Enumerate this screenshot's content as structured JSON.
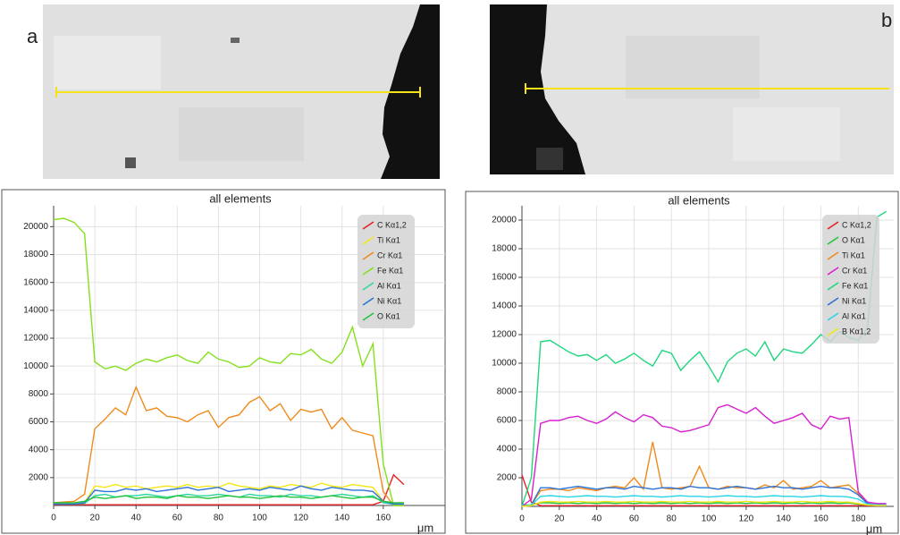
{
  "panel_labels": [
    "a",
    "b"
  ],
  "chart_data": [
    {
      "type": "line",
      "title": "all elements",
      "x_label": "μm",
      "grid": true,
      "xlim": [
        0,
        190
      ],
      "xticks": [
        0,
        20,
        40,
        60,
        80,
        100,
        120,
        140,
        160
      ],
      "ylim": [
        0,
        21500
      ],
      "yticks": [
        2000,
        4000,
        6000,
        8000,
        10000,
        12000,
        14000,
        16000,
        18000,
        20000
      ],
      "x": [
        0,
        5,
        10,
        15,
        20,
        25,
        30,
        35,
        40,
        45,
        50,
        55,
        60,
        65,
        70,
        75,
        80,
        85,
        90,
        95,
        100,
        105,
        110,
        115,
        120,
        125,
        130,
        135,
        140,
        145,
        150,
        155,
        160,
        165,
        170
      ],
      "series": [
        {
          "name": "C Kα1,2",
          "color": "#e8202a",
          "values": [
            50,
            50,
            50,
            50,
            50,
            50,
            50,
            50,
            50,
            50,
            50,
            50,
            50,
            50,
            50,
            50,
            50,
            50,
            50,
            50,
            50,
            50,
            50,
            50,
            50,
            50,
            50,
            50,
            50,
            50,
            50,
            50,
            300,
            2200,
            1500
          ]
        },
        {
          "name": "Ti Kα1",
          "color": "#f2e616",
          "values": [
            150,
            150,
            150,
            200,
            1400,
            1300,
            1500,
            1300,
            1400,
            1200,
            1300,
            1400,
            1300,
            1500,
            1300,
            1400,
            1300,
            1600,
            1400,
            1300,
            1200,
            1400,
            1300,
            1500,
            1400,
            1300,
            1600,
            1400,
            1300,
            1500,
            1400,
            1300,
            300,
            200,
            100
          ]
        },
        {
          "name": "Cr Kα1",
          "color": "#f08a1c",
          "values": [
            200,
            250,
            300,
            800,
            5500,
            6200,
            7000,
            6500,
            8500,
            6800,
            7000,
            6400,
            6300,
            6000,
            6500,
            6800,
            5600,
            6300,
            6500,
            7400,
            7800,
            6800,
            7300,
            6100,
            6900,
            6700,
            6900,
            5500,
            6300,
            5400,
            5200,
            5000,
            1000,
            0,
            0
          ]
        },
        {
          "name": "Fe Kα1",
          "color": "#84e01c",
          "values": [
            20500,
            20600,
            20300,
            19500,
            10300,
            9800,
            10000,
            9700,
            10200,
            10500,
            10300,
            10600,
            10800,
            10400,
            10200,
            11000,
            10500,
            10300,
            9900,
            10000,
            10600,
            10300,
            10200,
            10900,
            10800,
            11200,
            10500,
            10200,
            11000,
            12800,
            10000,
            11600,
            3000,
            0,
            0
          ]
        },
        {
          "name": "Al Kα1",
          "color": "#2ed6a0",
          "values": [
            100,
            100,
            100,
            150,
            700,
            800,
            600,
            700,
            700,
            800,
            700,
            600,
            700,
            800,
            700,
            700,
            800,
            700,
            600,
            800,
            700,
            700,
            600,
            800,
            700,
            700,
            600,
            700,
            800,
            700,
            600,
            700,
            200,
            100,
            100
          ]
        },
        {
          "name": "Ni Kα1",
          "color": "#2a72d8",
          "values": [
            100,
            100,
            100,
            200,
            1100,
            1000,
            1000,
            1200,
            1100,
            1200,
            1000,
            1100,
            1200,
            1300,
            1100,
            1200,
            1300,
            1000,
            1100,
            1200,
            1100,
            1300,
            1200,
            1100,
            1400,
            1200,
            1100,
            1300,
            1200,
            1100,
            1100,
            1000,
            300,
            100,
            100
          ]
        },
        {
          "name": "O Kα1",
          "color": "#22c23a",
          "values": [
            200,
            200,
            200,
            300,
            600,
            500,
            600,
            700,
            500,
            600,
            600,
            500,
            700,
            600,
            600,
            500,
            600,
            700,
            600,
            600,
            500,
            600,
            700,
            600,
            600,
            500,
            600,
            700,
            600,
            500,
            600,
            600,
            300,
            200,
            200
          ]
        }
      ]
    },
    {
      "type": "line",
      "title": "all elements",
      "x_label": "μm",
      "grid": true,
      "xlim": [
        0,
        199
      ],
      "xticks": [
        0,
        20,
        40,
        60,
        80,
        100,
        120,
        140,
        160,
        180
      ],
      "ylim": [
        0,
        21000
      ],
      "yticks": [
        2000,
        4000,
        6000,
        8000,
        10000,
        12000,
        14000,
        16000,
        18000,
        20000
      ],
      "x": [
        0,
        5,
        10,
        15,
        20,
        25,
        30,
        35,
        40,
        45,
        50,
        55,
        60,
        65,
        70,
        75,
        80,
        85,
        90,
        95,
        100,
        105,
        110,
        115,
        120,
        125,
        130,
        135,
        140,
        145,
        150,
        155,
        160,
        165,
        170,
        175,
        180,
        185,
        190,
        195
      ],
      "series": [
        {
          "name": "C Kα1,2",
          "color": "#e8202a",
          "values": [
            2200,
            300,
            50,
            50,
            50,
            50,
            50,
            50,
            50,
            50,
            50,
            50,
            50,
            50,
            50,
            50,
            50,
            50,
            50,
            50,
            50,
            50,
            50,
            50,
            50,
            50,
            50,
            50,
            50,
            50,
            50,
            50,
            50,
            50,
            50,
            50,
            50,
            50,
            50,
            50
          ]
        },
        {
          "name": "O Kα1",
          "color": "#22c23a",
          "values": [
            100,
            100,
            250,
            250,
            200,
            250,
            200,
            250,
            200,
            250,
            200,
            250,
            200,
            250,
            200,
            250,
            200,
            250,
            200,
            250,
            200,
            250,
            200,
            250,
            200,
            250,
            200,
            250,
            200,
            250,
            200,
            250,
            200,
            250,
            200,
            250,
            150,
            100,
            100,
            100
          ]
        },
        {
          "name": "Ti Kα1",
          "color": "#f08a1c",
          "values": [
            0,
            100,
            1100,
            1200,
            1200,
            1100,
            1300,
            1200,
            1100,
            1300,
            1400,
            1300,
            2000,
            1200,
            4500,
            1300,
            1200,
            1300,
            1400,
            2800,
            1300,
            1200,
            1400,
            1300,
            1300,
            1200,
            1500,
            1300,
            1800,
            1200,
            1300,
            1400,
            1800,
            1300,
            1400,
            1500,
            900,
            200,
            100,
            100
          ]
        },
        {
          "name": "Cr Kα1",
          "color": "#d81fd0",
          "values": [
            0,
            500,
            5800,
            6000,
            6000,
            6200,
            6300,
            6000,
            5800,
            6100,
            6600,
            6200,
            5900,
            6400,
            6200,
            5600,
            5500,
            5200,
            5300,
            5500,
            5700,
            6900,
            7100,
            6800,
            6500,
            6900,
            6300,
            5800,
            6000,
            6200,
            6500,
            5700,
            5400,
            6300,
            6100,
            6200,
            1000,
            300,
            200,
            200
          ]
        },
        {
          "name": "Fe Kα1",
          "color": "#1fd67f",
          "values": [
            0,
            2000,
            11500,
            11600,
            11200,
            10800,
            10500,
            10600,
            10200,
            10600,
            10000,
            10300,
            10700,
            10200,
            9800,
            10900,
            10700,
            9500,
            10200,
            10800,
            9800,
            8700,
            10100,
            10700,
            11000,
            10500,
            11500,
            10200,
            11000,
            10800,
            10700,
            11300,
            12000,
            11500,
            12200,
            11800,
            11600,
            12500,
            20200,
            20600
          ]
        },
        {
          "name": "Ni Kα1",
          "color": "#2a72d8",
          "values": [
            0,
            100,
            1300,
            1300,
            1200,
            1300,
            1400,
            1300,
            1200,
            1300,
            1300,
            1200,
            1400,
            1300,
            1200,
            1300,
            1300,
            1200,
            1400,
            1300,
            1300,
            1200,
            1300,
            1400,
            1300,
            1200,
            1300,
            1400,
            1300,
            1300,
            1200,
            1300,
            1400,
            1300,
            1300,
            1200,
            800,
            200,
            100,
            100
          ]
        },
        {
          "name": "Al Kα1",
          "color": "#2ad4e8",
          "values": [
            0,
            100,
            700,
            750,
            700,
            650,
            700,
            750,
            700,
            700,
            650,
            700,
            750,
            700,
            700,
            650,
            700,
            750,
            700,
            700,
            650,
            700,
            750,
            700,
            700,
            650,
            700,
            750,
            700,
            700,
            650,
            700,
            750,
            700,
            700,
            650,
            500,
            150,
            100,
            100
          ]
        },
        {
          "name": "B Kα1,2",
          "color": "#f2e616",
          "values": [
            0,
            50,
            300,
            350,
            300,
            300,
            350,
            300,
            300,
            350,
            300,
            300,
            350,
            300,
            300,
            350,
            300,
            300,
            350,
            300,
            300,
            350,
            300,
            300,
            350,
            300,
            300,
            350,
            300,
            300,
            350,
            300,
            300,
            350,
            300,
            300,
            200,
            100,
            50,
            50
          ]
        }
      ]
    }
  ]
}
